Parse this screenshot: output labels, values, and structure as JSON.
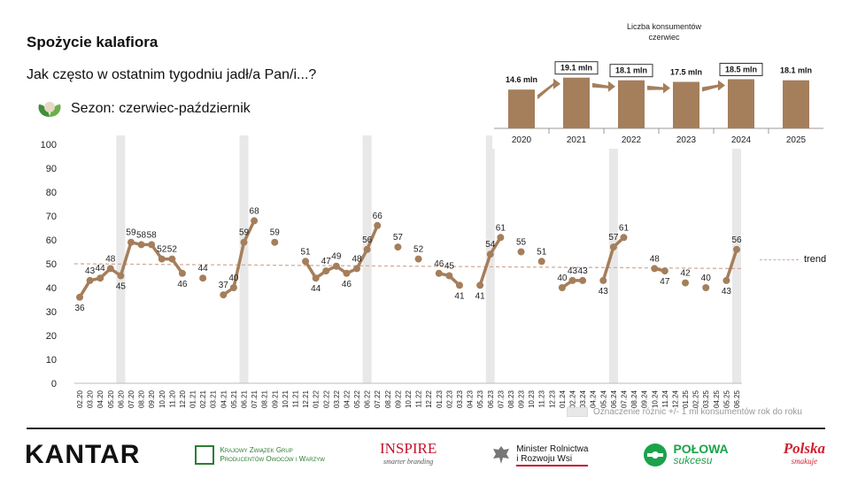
{
  "header": {
    "title": "Spożycie kalafiora",
    "question": "Jak często w ostatnim tygodniu jadł/a Pan/i...?",
    "season": "Sezon: czerwiec-październik"
  },
  "colors": {
    "line": "#a57e5b",
    "shade": "#e8e8e8",
    "trend": "#d2ad9a",
    "inset_bar": "#a57e5b"
  },
  "legend": {
    "trend_label": "trend",
    "shade_label": "Oznaczenie różnic +/- 1 ml konsumentów rok do roku"
  },
  "chart_data": [
    {
      "type": "line",
      "ylim": [
        0,
        100
      ],
      "yticks": [
        0,
        10,
        20,
        30,
        40,
        50,
        60,
        70,
        80,
        90,
        100
      ],
      "grid": false,
      "trend_value": 50,
      "trend_slope_to": 48,
      "x": [
        "02.20",
        "03.20",
        "04.20",
        "05.20",
        "06.20",
        "07.20",
        "08.20",
        "09.20",
        "10.20",
        "11.20",
        "12.20",
        "01.21",
        "02.21",
        "03.21",
        "04.21",
        "05.21",
        "06.21",
        "07.21",
        "08.21",
        "09.21",
        "10.21",
        "11.21",
        "12.21",
        "01.22",
        "02.22",
        "03.22",
        "04.22",
        "05.22",
        "06.22",
        "07.22",
        "08.22",
        "09.22",
        "10.22",
        "11.22",
        "12.22",
        "01.23",
        "02.23",
        "03.23",
        "04.23",
        "05.23",
        "06.23",
        "07.23",
        "08.23",
        "09.23",
        "10.23",
        "11.23",
        "12.23",
        "01.24",
        "02.24",
        "03.24",
        "04.24",
        "05.24",
        "06.24",
        "07.24",
        "08.24",
        "09.24",
        "10.24",
        "11.24",
        "12.24",
        "01.25",
        "02.25",
        "03.25",
        "04.25",
        "05.25",
        "06.25"
      ],
      "values": [
        36,
        43,
        44,
        48,
        45,
        59,
        58,
        58,
        52,
        52,
        46,
        null,
        44,
        null,
        37,
        40,
        59,
        68,
        null,
        59,
        null,
        null,
        51,
        44,
        47,
        49,
        46,
        48,
        56,
        66,
        null,
        57,
        null,
        52,
        null,
        46,
        45,
        41,
        null,
        41,
        54,
        61,
        null,
        55,
        null,
        51,
        null,
        40,
        43,
        43,
        null,
        43,
        57,
        61,
        null,
        null,
        48,
        47,
        null,
        42,
        null,
        40,
        null,
        43,
        56
      ],
      "labels": [
        "36",
        "43",
        "44",
        "48",
        "45",
        "59",
        "58",
        "58",
        "52",
        "52",
        "46",
        null,
        "44",
        null,
        "37",
        "40",
        "59",
        "68",
        null,
        "59",
        null,
        null,
        "51",
        "44",
        "47",
        "49",
        "46",
        "48",
        "56",
        "66",
        null,
        "57",
        null,
        "52",
        null,
        "46",
        "45",
        "41",
        null,
        "41",
        "54",
        "61",
        null,
        "55",
        null,
        "51",
        null,
        "40",
        "43",
        "43",
        null,
        "43",
        "57",
        "61",
        null,
        null,
        "48",
        "47",
        null,
        "42",
        null,
        "40",
        null,
        "43",
        "56"
      ],
      "shaded": [
        "06.20",
        "06.21",
        "06.22",
        "06.23",
        "06.24",
        "06.25"
      ]
    },
    {
      "type": "bar",
      "title": "Liczba konsumentów\nczerwiec",
      "categories": [
        "2020",
        "2021",
        "2022",
        "2023",
        "2024",
        "2025"
      ],
      "values": [
        14.6,
        19.1,
        18.1,
        17.5,
        18.5,
        18.1
      ],
      "labels": [
        "14.6 mln",
        "19.1 mln",
        "18.1 mln",
        "17.5 mln",
        "18.5 mln",
        "18.1 mln"
      ],
      "boxed": [
        false,
        true,
        true,
        false,
        true,
        false
      ],
      "arrows": [
        true,
        true,
        true,
        true,
        false
      ]
    }
  ],
  "footer": {
    "kantar": "KANTAR",
    "krzgpoiw_line1": "Krajowy Związek Grup",
    "krzgpoiw_line2": "Producentów Owoców i Warzyw",
    "inspire": "INSPIRE",
    "inspire_sub": "smarter branding",
    "minister_line1": "Minister Rolnictwa",
    "minister_line2": "i Rozwoju Wsi",
    "polowa": "POŁOWA",
    "polowa_sub": "sukcesu",
    "polska": "Polska",
    "polska_sub": "smakuje"
  }
}
